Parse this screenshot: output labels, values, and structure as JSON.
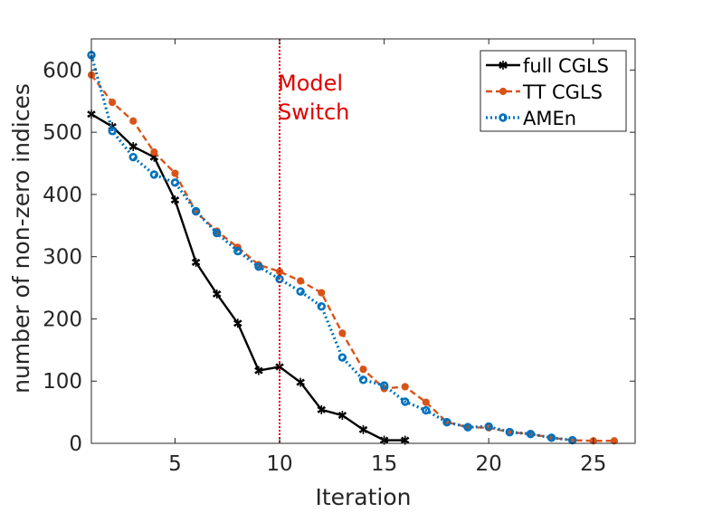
{
  "chart_data": {
    "type": "line",
    "title": "",
    "xlabel": "Iteration",
    "ylabel": "number of non-zero indices",
    "xlim": [
      1,
      27
    ],
    "ylim": [
      0,
      650
    ],
    "xticks": [
      5,
      10,
      15,
      20,
      25
    ],
    "yticks": [
      0,
      100,
      200,
      300,
      400,
      500,
      600
    ],
    "grid": false,
    "legend_position": "top-right",
    "series": [
      {
        "name": "full CGLS",
        "color": "#000000",
        "line_style": "solid",
        "marker": "asterisk",
        "x": [
          1,
          2,
          3,
          4,
          5,
          6,
          7,
          8,
          9,
          10,
          11,
          12,
          13,
          14,
          15,
          16
        ],
        "y": [
          529,
          509,
          477,
          460,
          391,
          291,
          240,
          193,
          117,
          123,
          98,
          54,
          45,
          22,
          5,
          5
        ]
      },
      {
        "name": "TT CGLS",
        "color": "#D95319",
        "line_style": "dashed",
        "marker": "dot",
        "x": [
          1,
          2,
          3,
          4,
          5,
          6,
          7,
          8,
          9,
          10,
          11,
          12,
          13,
          14,
          15,
          16,
          17,
          18,
          19,
          20,
          21,
          22,
          23,
          24,
          25,
          26
        ],
        "y": [
          592,
          548,
          518,
          468,
          434,
          372,
          341,
          315,
          287,
          276,
          261,
          242,
          177,
          119,
          88,
          91,
          66,
          34,
          26,
          25,
          18,
          15,
          9,
          5,
          4,
          4
        ]
      },
      {
        "name": "AMEn",
        "color": "#0072BD",
        "line_style": "dotted",
        "marker": "circle",
        "x": [
          1,
          2,
          3,
          4,
          5,
          6,
          7,
          8,
          9,
          10,
          11,
          12,
          13,
          14,
          15,
          16,
          17,
          18,
          19,
          20,
          21,
          22,
          23,
          24
        ],
        "y": [
          624,
          502,
          460,
          432,
          419,
          373,
          338,
          309,
          284,
          264,
          244,
          220,
          138,
          102,
          93,
          67,
          53,
          34,
          26,
          27,
          18,
          15,
          9,
          5
        ]
      }
    ],
    "annotations": [
      {
        "type": "vline",
        "x": 10,
        "color": "#E00000",
        "line_style": "dotted",
        "label": [
          "Model",
          "Switch"
        ]
      }
    ]
  }
}
